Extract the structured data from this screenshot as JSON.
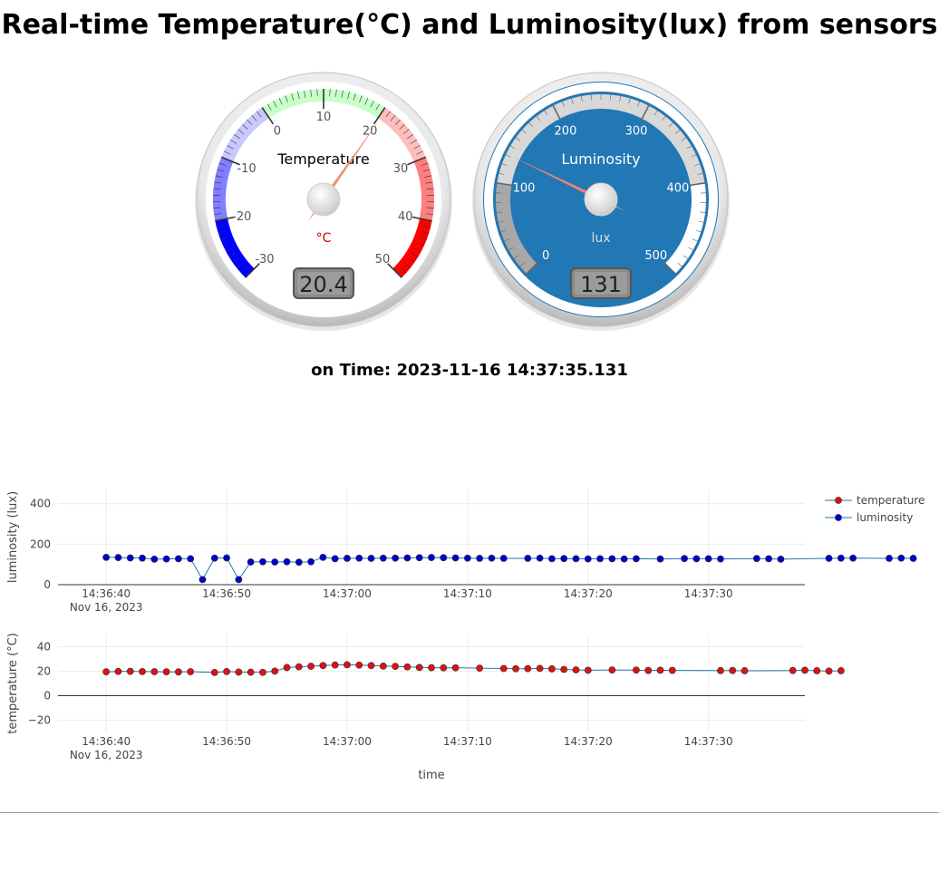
{
  "page": {
    "title": "Real-time Temperature(°C) and Luminosity(lux) from sensors",
    "time_prefix": "on Time:",
    "timestamp": "2023-11-16 14:37:35.131"
  },
  "gauges": {
    "temperature": {
      "title": "Temperature",
      "units": "°C",
      "value": 20.4,
      "value_text": "20.4",
      "min": -30,
      "max": 50,
      "major_ticks": [
        "-30",
        "-20",
        "-10",
        "0",
        "10",
        "20",
        "30",
        "40",
        "50"
      ],
      "highlights": [
        {
          "from": -30,
          "to": -20,
          "color": "#0000ff"
        },
        {
          "from": -20,
          "to": -10,
          "color": "#7f7fff"
        },
        {
          "from": -10,
          "to": 0,
          "color": "#c8c8ff"
        },
        {
          "from": 0,
          "to": 20,
          "color": "#c8ffc8"
        },
        {
          "from": 20,
          "to": 30,
          "color": "#ffbdbd"
        },
        {
          "from": 30,
          "to": 40,
          "color": "#ff7f7f"
        },
        {
          "from": 40,
          "to": 50,
          "color": "#ff0000"
        }
      ],
      "colors": {
        "plate": "#ffffff",
        "numbers": "#555555",
        "title": "#000000",
        "units": "#cc0000",
        "needle": "#f08a6e"
      }
    },
    "luminosity": {
      "title": "Luminosity",
      "units": "lux",
      "value": 131,
      "value_text": "131",
      "min": 0,
      "max": 500,
      "major_ticks": [
        "0",
        "100",
        "200",
        "300",
        "400",
        "500"
      ],
      "highlights": [
        {
          "from": 0,
          "to": 100,
          "color": "#a8a8a8"
        },
        {
          "from": 100,
          "to": 400,
          "color": "#d8d8d8"
        },
        {
          "from": 400,
          "to": 500,
          "color": "#ffffff"
        }
      ],
      "colors": {
        "plate": "#2277b5",
        "numbers": "#ffffff",
        "title": "#ffffff",
        "units": "#dddddd",
        "needle": "#f08a6e"
      }
    }
  },
  "chart_data": [
    {
      "type": "line",
      "title": "",
      "xlabel": "",
      "ylabel": "luminosity (lux)",
      "ylim": [
        0,
        470
      ],
      "yticks": [
        "0",
        "200",
        "400"
      ],
      "xlim": [
        "14:36:36",
        "14:37:38"
      ],
      "xticks": [
        "14:36:40",
        "14:36:50",
        "14:37:00",
        "14:37:10",
        "14:37:20",
        "14:37:30"
      ],
      "x_date_label": "Nov 16, 2023",
      "series": [
        {
          "name": "luminosity",
          "color": "#0000cc",
          "line_color": "#1f77b4",
          "x": [
            -4,
            -3,
            -2,
            -1,
            0,
            1,
            2,
            3,
            4,
            5,
            6,
            7,
            8,
            9,
            10,
            11,
            12,
            13,
            14,
            15,
            16,
            17,
            18,
            19,
            20,
            21,
            22,
            23,
            24,
            25,
            26,
            27,
            28,
            29,
            31,
            32,
            33,
            34,
            35,
            36,
            37,
            38,
            39,
            40,
            42,
            44,
            45,
            46,
            47,
            50,
            51,
            52,
            56,
            57,
            58,
            61,
            62,
            63
          ],
          "y": [
            135,
            134,
            132,
            131,
            126,
            127,
            128,
            128,
            25,
            131,
            132,
            25,
            112,
            113,
            112,
            113,
            111,
            113,
            135,
            128,
            130,
            131,
            130,
            131,
            131,
            132,
            133,
            134,
            133,
            132,
            131,
            130,
            131,
            130,
            130,
            131,
            128,
            129,
            128,
            127,
            128,
            128,
            127,
            128,
            127,
            129,
            128,
            128,
            127,
            129,
            128,
            126,
            130,
            131,
            131,
            130,
            131,
            130
          ]
        }
      ]
    },
    {
      "type": "line",
      "title": "",
      "xlabel": "time",
      "ylabel": "temperature (°C)",
      "ylim": [
        -30,
        50
      ],
      "yticks": [
        "−20",
        "0",
        "20",
        "40"
      ],
      "xlim": [
        "14:36:36",
        "14:37:38"
      ],
      "xticks": [
        "14:36:40",
        "14:36:50",
        "14:37:00",
        "14:37:10",
        "14:37:20",
        "14:37:30"
      ],
      "x_date_label": "Nov 16, 2023",
      "legend": [
        "temperature",
        "luminosity"
      ],
      "legend_position": "top-right",
      "series": [
        {
          "name": "temperature",
          "color": "#dd1111",
          "line_color": "#1f77b4",
          "x": [
            -4,
            -3,
            -2,
            -1,
            0,
            1,
            2,
            3,
            5,
            6,
            7,
            8,
            9,
            10,
            11,
            12,
            13,
            14,
            15,
            16,
            17,
            18,
            19,
            20,
            21,
            22,
            23,
            24,
            25,
            27,
            29,
            30,
            31,
            32,
            33,
            34,
            35,
            36,
            38,
            40,
            41,
            42,
            43,
            47,
            48,
            49,
            53,
            54,
            55,
            56,
            57
          ],
          "y": [
            19.5,
            19.8,
            19.9,
            19.7,
            19.6,
            19.5,
            19.4,
            19.6,
            19.0,
            19.7,
            19.3,
            19.2,
            19.1,
            20.1,
            23.0,
            23.6,
            24.1,
            24.6,
            25.1,
            25.3,
            25.0,
            24.6,
            24.2,
            24.0,
            23.5,
            23.1,
            22.9,
            22.8,
            22.8,
            22.5,
            22.2,
            22.0,
            22.1,
            22.3,
            21.9,
            21.5,
            21.1,
            20.8,
            21.0,
            20.9,
            20.6,
            20.8,
            20.7,
            20.5,
            20.6,
            20.4,
            20.6,
            20.8,
            20.4,
            20.1,
            20.4
          ]
        }
      ]
    }
  ]
}
